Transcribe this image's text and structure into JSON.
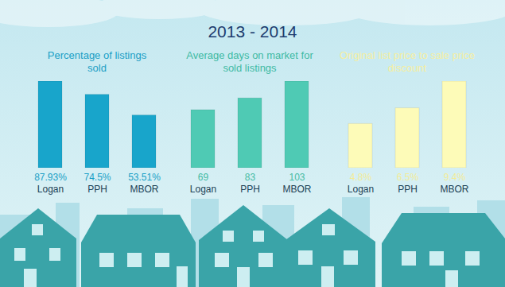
{
  "title": "2013 - 2014",
  "chart_data": [
    {
      "type": "bar",
      "title": "Percentage of listings sold",
      "categories": [
        "Logan",
        "PPH",
        "MBOR"
      ],
      "values": [
        87.93,
        74.5,
        53.51
      ],
      "value_labels": [
        "87.93%",
        "74.5%",
        "53.51%"
      ],
      "color": "#18a5cb",
      "data_labels": true,
      "tick_labels": "x"
    },
    {
      "type": "bar",
      "title": "Average days on market for sold listings",
      "categories": [
        "Logan",
        "PPH",
        "MBOR"
      ],
      "values": [
        69,
        83,
        103
      ],
      "color": "#4fcab4",
      "data_labels": true,
      "tick_labels": "x"
    },
    {
      "type": "bar",
      "title": "Original list price to sale price discount",
      "categories": [
        "Logan",
        "PPH",
        "MBOR"
      ],
      "values": [
        4.8,
        6.5,
        9.4
      ],
      "value_labels": [
        "4.8%",
        "6.5%",
        "9.4%"
      ],
      "color": "#fdfbb8",
      "data_labels": true,
      "tick_labels": "x"
    }
  ]
}
